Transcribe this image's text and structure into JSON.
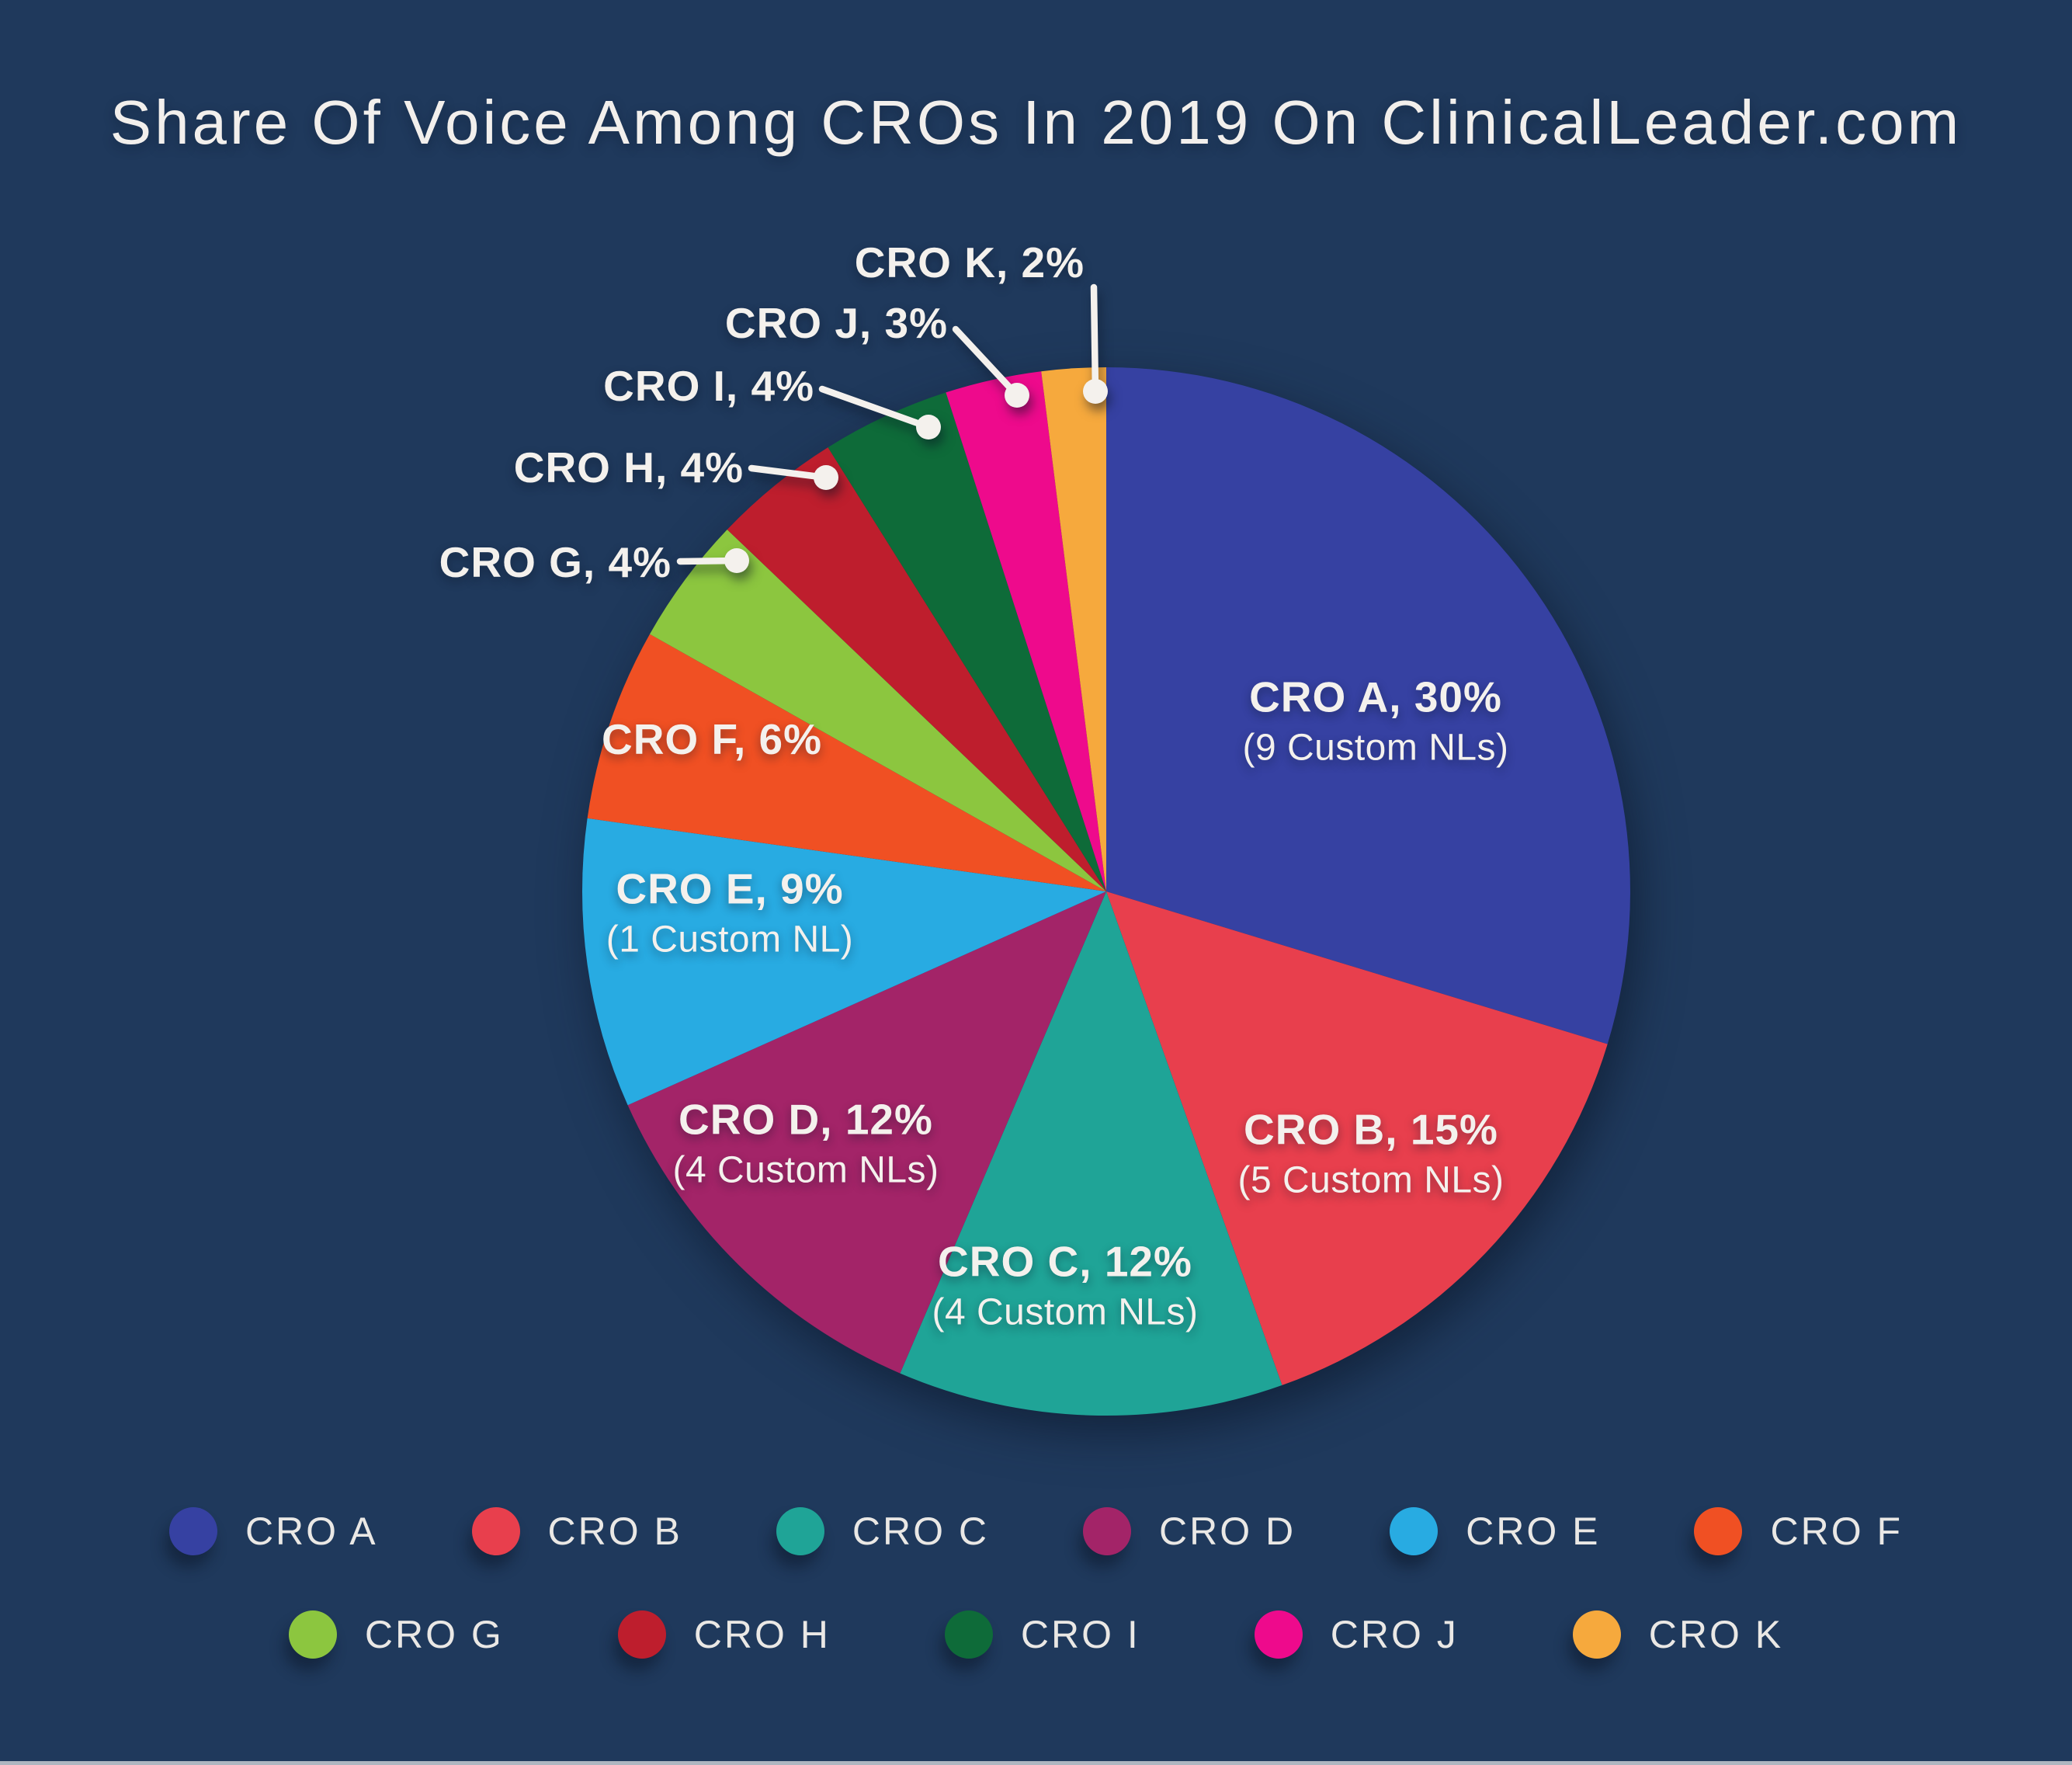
{
  "title": "Share Of Voice Among CROs In 2019 On ClinicalLeader.com",
  "colors": {
    "background": "#1F395C",
    "text": "#F4F1ED",
    "callout_ink": "#F4F1ED"
  },
  "chart_data": {
    "type": "pie",
    "title": "Share Of Voice Among CROs In 2019 On ClinicalLeader.com",
    "units": "percent share of voice",
    "start_angle_deg_from_top": 0,
    "direction": "clockwise",
    "legend_position": "bottom",
    "series": [
      {
        "name": "CRO A",
        "value": 30,
        "note": "9 Custom NLs",
        "color": "#3641A2",
        "label": "CRO A, 30%",
        "sublabel": "(9 Custom NLs)",
        "label_style": "inside",
        "label_x": 1772,
        "label_y": 928
      },
      {
        "name": "CRO B",
        "value": 15,
        "note": "5 Custom NLs",
        "color": "#E83F4D",
        "label": "CRO B, 15%",
        "sublabel": "(5 Custom NLs)",
        "label_style": "inside",
        "label_x": 1766,
        "label_y": 1485
      },
      {
        "name": "CRO C",
        "value": 12,
        "note": "4 Custom NLs",
        "color": "#1FA497",
        "label": "CRO C, 12%",
        "sublabel": "(4 Custom NLs)",
        "label_style": "inside",
        "label_x": 1372,
        "label_y": 1655
      },
      {
        "name": "CRO D",
        "value": 12,
        "note": "4 Custom NLs",
        "color": "#A32468",
        "label": "CRO D, 12%",
        "sublabel": "(4 Custom NLs)",
        "label_style": "inside",
        "label_x": 1038,
        "label_y": 1472
      },
      {
        "name": "CRO E",
        "value": 9,
        "note": "1 Custom NL",
        "color": "#28ABE2",
        "label": "CRO E, 9%",
        "sublabel": "(1 Custom NL)",
        "label_style": "inside",
        "label_x": 940,
        "label_y": 1175
      },
      {
        "name": "CRO F",
        "value": 6,
        "note": "",
        "color": "#F05023",
        "label": "CRO F, 6%",
        "sublabel": "",
        "label_style": "inside",
        "label_x": 917,
        "label_y": 952
      },
      {
        "name": "CRO G",
        "value": 4,
        "note": "",
        "color": "#8CC63F",
        "label": "CRO G, 4%",
        "sublabel": "",
        "label_style": "callout",
        "label_x": 865,
        "label_y": 724,
        "line": [
          876,
          723
        ],
        "dot": [
          949,
          722
        ]
      },
      {
        "name": "CRO H",
        "value": 4,
        "note": "",
        "color": "#BE1E2D",
        "label": "CRO H, 4%",
        "sublabel": "",
        "label_style": "callout",
        "label_x": 958,
        "label_y": 602,
        "line": [
          968,
          603
        ],
        "dot": [
          1064,
          615
        ]
      },
      {
        "name": "CRO I",
        "value": 4,
        "note": "",
        "color": "#0E6B39",
        "label": "CRO I, 4%",
        "sublabel": "",
        "label_style": "callout",
        "label_x": 1049,
        "label_y": 497,
        "line": [
          1059,
          501
        ],
        "dot": [
          1196,
          550
        ]
      },
      {
        "name": "CRO J",
        "value": 3,
        "note": "",
        "color": "#EE0A8C",
        "label": "CRO J, 3%",
        "sublabel": "",
        "label_style": "callout",
        "label_x": 1221,
        "label_y": 416,
        "line": [
          1231,
          424
        ],
        "dot": [
          1310,
          509
        ]
      },
      {
        "name": "CRO K",
        "value": 2,
        "note": "",
        "color": "#F6A93D",
        "label": "CRO K, 2%",
        "sublabel": "",
        "label_style": "callout",
        "label_x": 1397,
        "label_y": 338,
        "line": [
          1409,
          370
        ],
        "dot": [
          1411,
          504
        ]
      }
    ],
    "legend_rows": [
      [
        "CRO A",
        "CRO B",
        "CRO C",
        "CRO D",
        "CRO E",
        "CRO F"
      ],
      [
        "CRO G",
        "CRO H",
        "CRO I",
        "CRO J",
        "CRO K"
      ]
    ]
  }
}
